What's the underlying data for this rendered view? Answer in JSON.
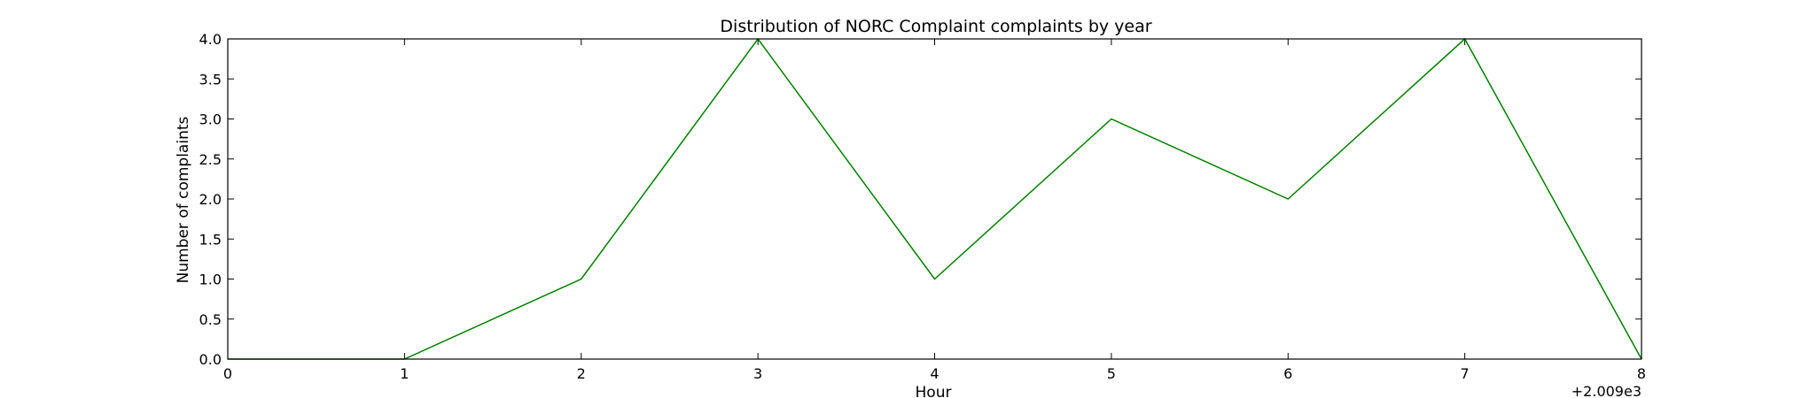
{
  "chart_data": {
    "type": "line",
    "title": "Distribution of  NORC Complaint complaints by year",
    "xlabel": "Hour",
    "ylabel": "Number of complaints",
    "x_offset_label": "+2.009e3",
    "x": [
      0,
      1,
      2,
      3,
      4,
      5,
      6,
      7,
      8
    ],
    "xlim": [
      0,
      8
    ],
    "ylim": [
      0,
      4
    ],
    "x_ticks": [
      "0",
      "1",
      "2",
      "3",
      "4",
      "5",
      "6",
      "7",
      "8"
    ],
    "y_ticks": [
      "0.0",
      "0.5",
      "1.0",
      "1.5",
      "2.0",
      "2.5",
      "3.0",
      "3.5",
      "4.0"
    ],
    "y_tick_values": [
      0,
      0.5,
      1,
      1.5,
      2,
      2.5,
      3,
      3.5,
      4
    ],
    "series": [
      {
        "values": [
          0,
          0,
          1,
          4,
          1,
          3,
          2,
          4,
          0
        ],
        "color": "#008000"
      }
    ],
    "grid": false,
    "legend": "none"
  }
}
